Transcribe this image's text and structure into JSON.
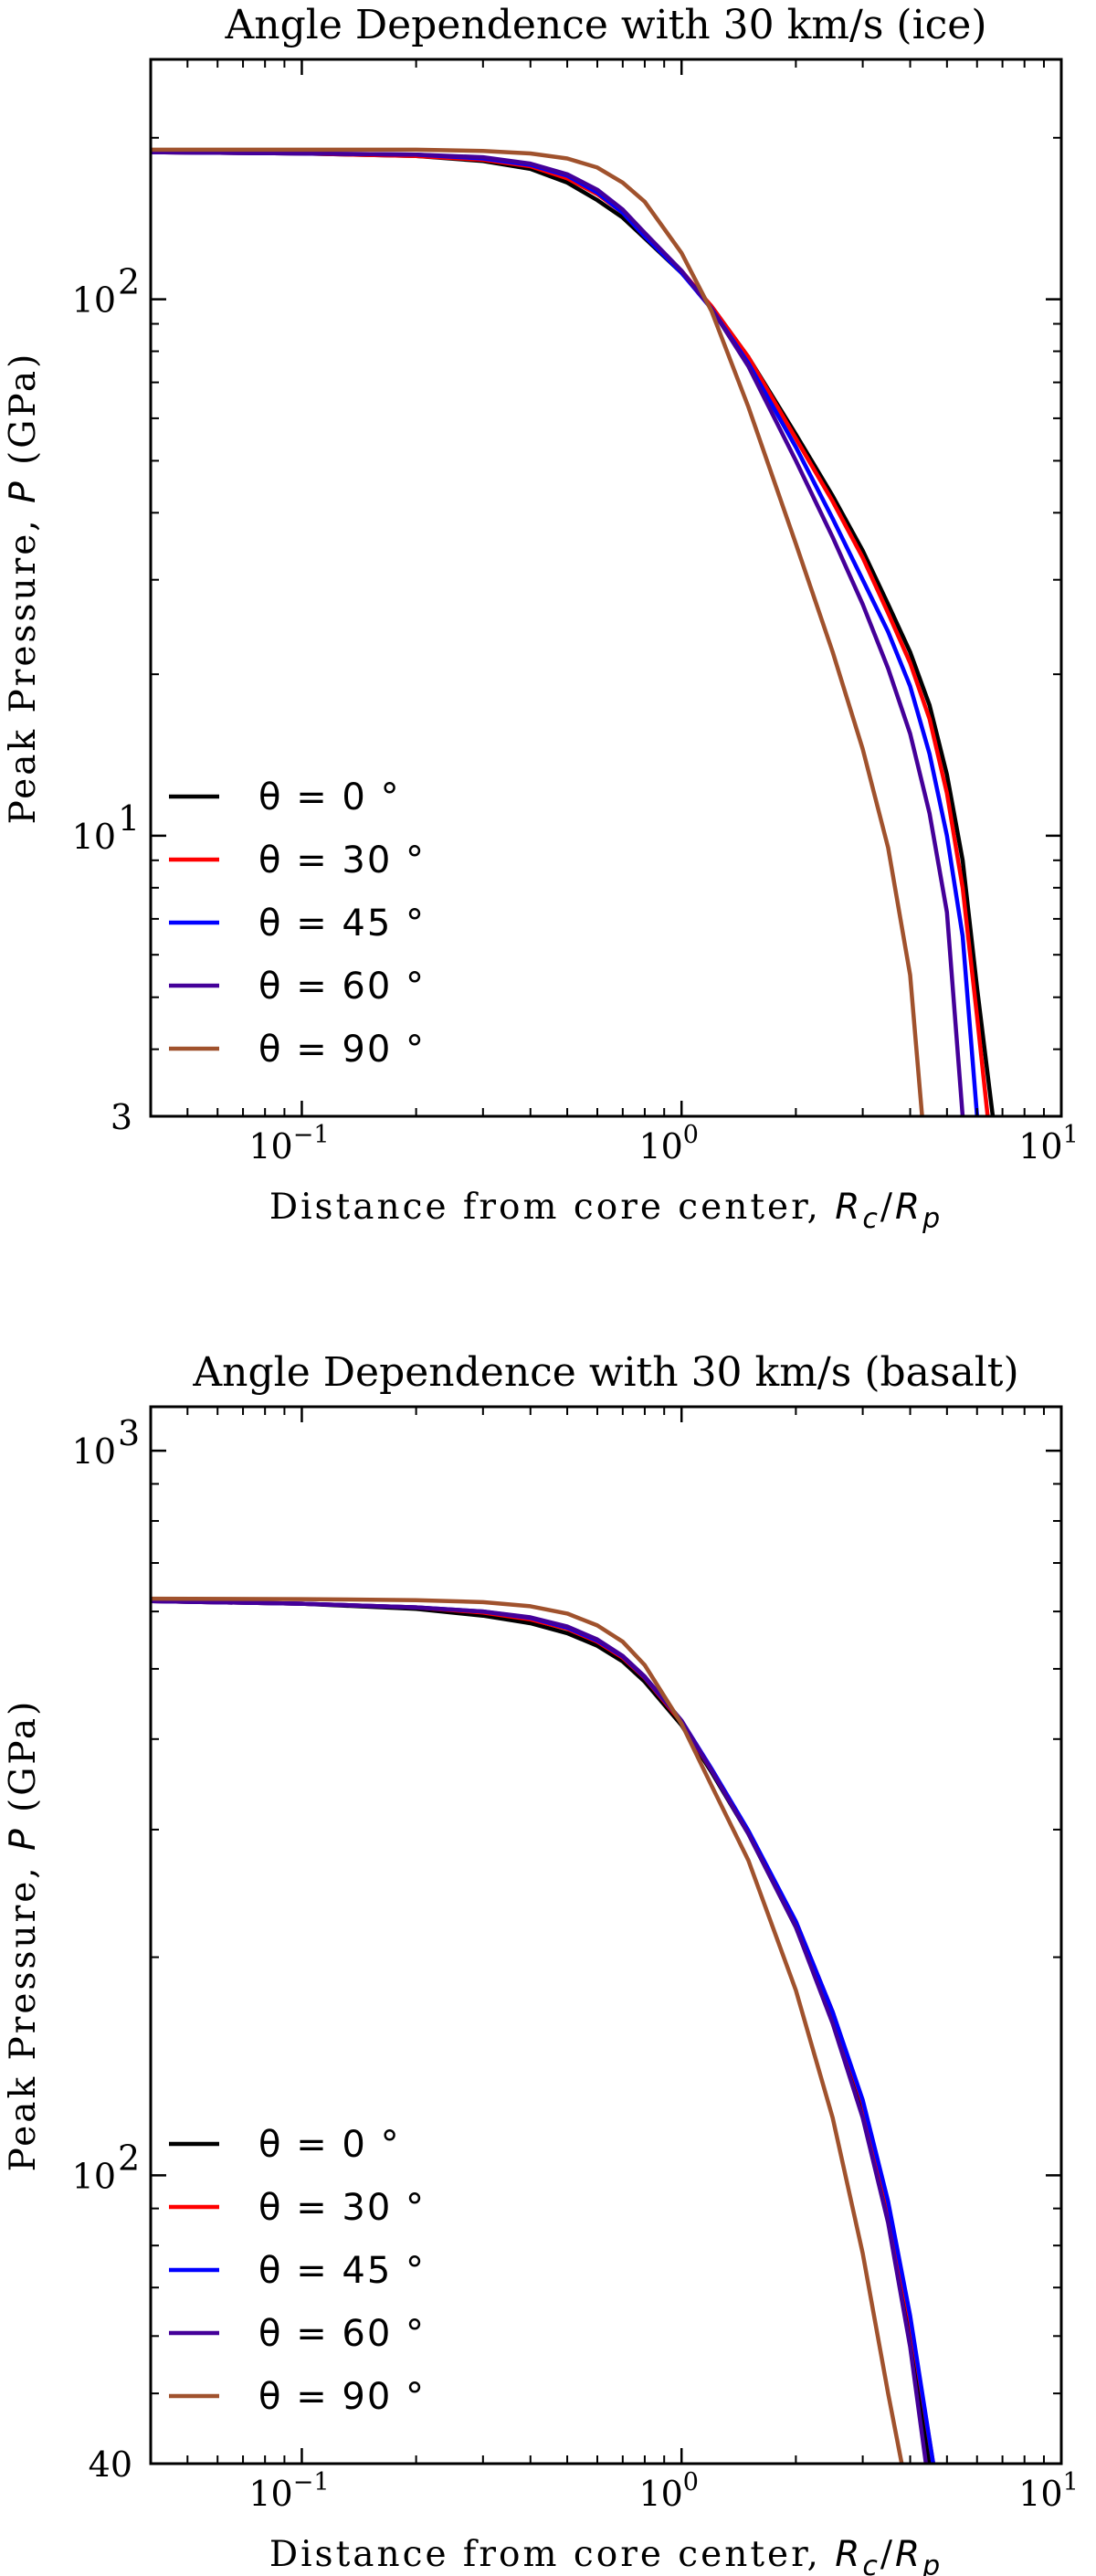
{
  "chart_data": [
    {
      "type": "line",
      "title": "Angle Dependence with 30 km/s (ice)",
      "xlabel_prefix": "Distance from core center, ",
      "xlabel_var": "R",
      "xlabel_sub1": "c",
      "xlabel_sep": "/",
      "xlabel_sub2": "p",
      "ylabel_prefix": "Peak Pressure, ",
      "ylabel_var": "P",
      "ylabel_suffix": " (GPa)",
      "xscale": "log",
      "yscale": "log",
      "xlim": [
        0.04,
        10
      ],
      "ylim": [
        3,
        280
      ],
      "xticks": [
        {
          "value": 0.1,
          "base": "10",
          "exp": "−1"
        },
        {
          "value": 1,
          "base": "10",
          "exp": "0"
        },
        {
          "value": 10,
          "base": "10",
          "exp": "1"
        }
      ],
      "yticks": [
        {
          "value": 3,
          "base": "3",
          "exp": ""
        },
        {
          "value": 10,
          "base": "10",
          "exp": "1"
        },
        {
          "value": 100,
          "base": "10",
          "exp": "2"
        }
      ],
      "legend_position": "lower-left",
      "grid": false,
      "series": [
        {
          "name": "θ =  0 °",
          "color": "#000000",
          "x": [
            0.04,
            0.1,
            0.2,
            0.3,
            0.4,
            0.5,
            0.6,
            0.7,
            0.8,
            1.0,
            1.2,
            1.5,
            2.0,
            2.5,
            3.0,
            3.5,
            4.0,
            4.5,
            5.0,
            5.5,
            6.0,
            6.6
          ],
          "y": [
            188,
            187,
            185,
            181,
            175,
            165,
            153,
            142,
            130,
            112,
            97,
            78,
            56,
            43,
            34,
            27,
            22,
            17.5,
            13,
            9,
            5.2,
            3
          ]
        },
        {
          "name": "θ =  30 °",
          "color": "#ff0000",
          "x": [
            0.04,
            0.1,
            0.2,
            0.3,
            0.4,
            0.5,
            0.6,
            0.7,
            0.8,
            1.0,
            1.2,
            1.5,
            2.0,
            2.5,
            3.0,
            3.5,
            4.0,
            4.5,
            5.0,
            5.5,
            6.0,
            6.4
          ],
          "y": [
            188,
            187,
            185,
            182,
            177,
            168,
            157,
            145,
            131,
            113,
            97,
            78,
            55,
            42,
            33,
            26,
            21,
            16.5,
            12,
            8,
            4.6,
            3
          ]
        },
        {
          "name": "θ =  45 °",
          "color": "#0000ff",
          "x": [
            0.04,
            0.1,
            0.2,
            0.3,
            0.4,
            0.5,
            0.6,
            0.7,
            0.8,
            1.0,
            1.2,
            1.5,
            2.0,
            2.5,
            3.0,
            3.5,
            4.0,
            4.5,
            5.0,
            5.5,
            6.0
          ],
          "y": [
            188,
            187,
            186,
            183,
            178,
            170,
            158,
            145,
            131,
            112,
            96,
            76,
            53,
            39,
            30,
            24,
            19,
            14.2,
            10,
            6.5,
            3
          ]
        },
        {
          "name": "θ =  60 °",
          "color": "#440099",
          "x": [
            0.04,
            0.1,
            0.2,
            0.3,
            0.4,
            0.5,
            0.6,
            0.7,
            0.8,
            1.0,
            1.2,
            1.5,
            2.0,
            2.5,
            3.0,
            3.5,
            4.0,
            4.5,
            5.0,
            5.5
          ],
          "y": [
            188,
            187,
            186,
            184,
            179,
            171,
            160,
            147,
            133,
            113,
            96,
            75,
            50,
            36,
            27,
            20.5,
            15.5,
            11,
            7.2,
            3
          ]
        },
        {
          "name": "θ =  90 °",
          "color": "#a0522d",
          "x": [
            0.04,
            0.1,
            0.2,
            0.3,
            0.4,
            0.5,
            0.6,
            0.7,
            0.8,
            1.0,
            1.2,
            1.5,
            2.0,
            2.5,
            3.0,
            3.5,
            4.0,
            4.3
          ],
          "y": [
            190,
            190,
            190,
            189,
            187,
            183,
            176,
            165,
            152,
            122,
            95,
            63,
            35,
            22,
            14.5,
            9.5,
            5.5,
            3
          ]
        }
      ]
    },
    {
      "type": "line",
      "title": "Angle Dependence with 30 km/s (basalt)",
      "xlabel_prefix": "Distance from core center, ",
      "xlabel_var": "R",
      "xlabel_sub1": "c",
      "xlabel_sep": "/",
      "xlabel_sub2": "p",
      "ylabel_prefix": "Peak Pressure, ",
      "ylabel_var": "P",
      "ylabel_suffix": " (GPa)",
      "xscale": "log",
      "yscale": "log",
      "xlim": [
        0.04,
        10
      ],
      "ylim": [
        40,
        1150
      ],
      "xticks": [
        {
          "value": 0.1,
          "base": "10",
          "exp": "−1"
        },
        {
          "value": 1,
          "base": "10",
          "exp": "0"
        },
        {
          "value": 10,
          "base": "10",
          "exp": "1"
        }
      ],
      "yticks": [
        {
          "value": 40,
          "base": "40",
          "exp": ""
        },
        {
          "value": 100,
          "base": "10",
          "exp": "2"
        },
        {
          "value": 1000,
          "base": "10",
          "exp": "3"
        }
      ],
      "legend_position": "lower-left",
      "grid": false,
      "series": [
        {
          "name": "θ =  0 °",
          "color": "#000000",
          "x": [
            0.04,
            0.1,
            0.2,
            0.3,
            0.4,
            0.5,
            0.6,
            0.7,
            0.8,
            1.0,
            1.2,
            1.5,
            2.0,
            2.5,
            3.0,
            3.5,
            4.0,
            4.5
          ],
          "y": [
            620,
            615,
            605,
            592,
            578,
            560,
            538,
            512,
            480,
            418,
            360,
            296,
            220,
            164,
            122,
            88,
            60,
            40
          ]
        },
        {
          "name": "θ =  30 °",
          "color": "#ff0000",
          "x": [
            0.04,
            0.1,
            0.2,
            0.3,
            0.4,
            0.5,
            0.6,
            0.7,
            0.8,
            1.0,
            1.2,
            1.5,
            2.0,
            2.5,
            3.0,
            3.5,
            4.0,
            4.6
          ],
          "y": [
            620,
            615,
            608,
            598,
            585,
            568,
            545,
            518,
            486,
            422,
            362,
            298,
            224,
            168,
            126,
            91,
            63,
            40
          ]
        },
        {
          "name": "θ =  45 °",
          "color": "#0000ff",
          "x": [
            0.04,
            0.1,
            0.2,
            0.3,
            0.4,
            0.5,
            0.6,
            0.7,
            0.8,
            1.0,
            1.2,
            1.5,
            2.0,
            2.5,
            3.0,
            3.5,
            4.0,
            4.6
          ],
          "y": [
            620,
            615,
            608,
            600,
            588,
            570,
            547,
            520,
            487,
            424,
            364,
            299,
            224,
            168,
            127,
            92,
            64,
            40
          ]
        },
        {
          "name": "θ =  60 °",
          "color": "#440099",
          "x": [
            0.04,
            0.1,
            0.2,
            0.3,
            0.4,
            0.5,
            0.6,
            0.7,
            0.8,
            1.0,
            1.2,
            1.5,
            2.0,
            2.5,
            3.0,
            3.5,
            4.0,
            4.4
          ],
          "y": [
            620,
            615,
            608,
            600,
            589,
            572,
            549,
            521,
            488,
            424,
            362,
            296,
            220,
            162,
            120,
            86,
            58,
            40
          ]
        },
        {
          "name": "θ =  90 °",
          "color": "#a0522d",
          "x": [
            0.04,
            0.1,
            0.2,
            0.3,
            0.4,
            0.5,
            0.6,
            0.7,
            0.8,
            1.0,
            1.2,
            1.5,
            2.0,
            2.5,
            3.0,
            3.5,
            3.8
          ],
          "y": [
            625,
            624,
            622,
            618,
            610,
            596,
            574,
            545,
            506,
            420,
            345,
            272,
            180,
            120,
            78,
            50,
            40
          ]
        }
      ]
    }
  ]
}
